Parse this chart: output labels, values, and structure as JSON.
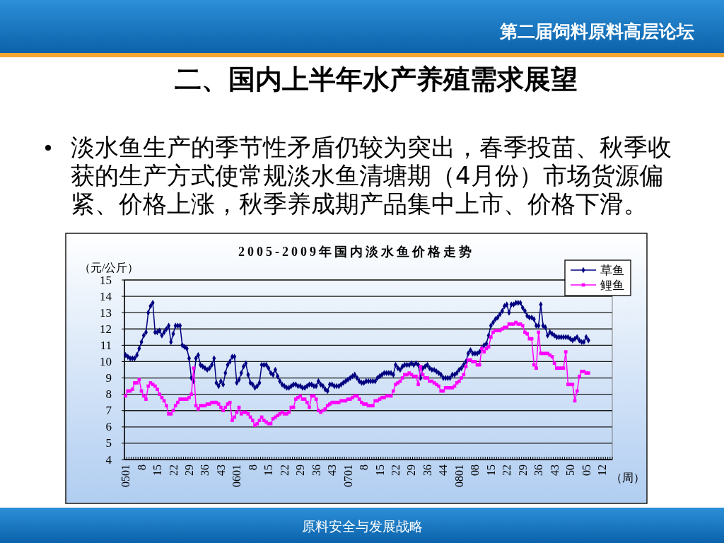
{
  "chart_data": {
    "type": "line",
    "title": "2005-2009年国内淡水鱼价格走势",
    "ylabel": "（元/公斤）",
    "xlabel": "（周）",
    "annotations": [
      "第二届饲料原料高层论坛",
      "二、国内上半年水产养殖需求展望",
      "淡水鱼生产的季节性矛盾仍较为突出，春季投苗、秋季收获的生产方式使常规淡水鱼清塘期（4月份）市场货源偏紧、价格上涨，秋季养成期产品集中上市、价格下滑。",
      "原料安全与发展战略"
    ],
    "categories": [
      "0501",
      null,
      null,
      null,
      null,
      null,
      null,
      "8",
      null,
      null,
      null,
      null,
      null,
      null,
      "15",
      null,
      null,
      null,
      null,
      null,
      null,
      "22",
      null,
      null,
      null,
      null,
      null,
      null,
      "29",
      null,
      null,
      null,
      null,
      null,
      null,
      "36",
      null,
      null,
      null,
      null,
      null,
      null,
      "43",
      null,
      null,
      null,
      null,
      null,
      null,
      "0601",
      null,
      null,
      null,
      null,
      null,
      null,
      "8",
      null,
      null,
      null,
      null,
      null,
      null,
      "15",
      null,
      null,
      null,
      null,
      null,
      null,
      "22",
      null,
      null,
      null,
      null,
      null,
      null,
      "29",
      null,
      null,
      null,
      null,
      null,
      null,
      "36",
      null,
      null,
      null,
      null,
      null,
      null,
      "43",
      null,
      null,
      null,
      null,
      null,
      null,
      "0701",
      null,
      null,
      null,
      null,
      null,
      null,
      "8",
      null,
      null,
      null,
      null,
      null,
      null,
      "15",
      null,
      null,
      null,
      null,
      null,
      null,
      "22",
      null,
      null,
      null,
      null,
      null,
      null,
      "29",
      null,
      null,
      null,
      null,
      null,
      null,
      "36",
      null,
      null,
      null,
      null,
      null,
      null,
      "44",
      null,
      null,
      null,
      null,
      null,
      null,
      "0801",
      null,
      null,
      null,
      null,
      null,
      null,
      "08",
      null,
      null,
      null,
      null,
      null,
      null,
      "15",
      null,
      null,
      null,
      null,
      null,
      null,
      "22",
      null,
      null,
      null,
      null,
      null,
      null,
      "29",
      null,
      null,
      null,
      null,
      null,
      null,
      "36",
      null,
      null,
      null,
      null,
      null,
      null,
      "43",
      null,
      null,
      null,
      null,
      null,
      null,
      "50",
      null,
      null,
      null,
      null,
      null,
      null,
      "05",
      null,
      null,
      null,
      null,
      null,
      null,
      "12",
      null,
      null,
      null,
      null
    ],
    "series": [
      {
        "name": "草鱼",
        "color": "#000080",
        "marker": "diamond",
        "values": [
          10.4,
          10.3,
          10.2,
          10.2,
          10.2,
          10.4,
          10.8,
          11.2,
          11.6,
          11.8,
          13.0,
          13.4,
          13.6,
          11.8,
          11.8,
          11.9,
          11.6,
          11.8,
          12.0,
          12.2,
          11.2,
          11.7,
          12.2,
          12.2,
          12.2,
          11.0,
          10.9,
          10.8,
          10.2,
          9.0,
          8.8,
          10.2,
          10.4,
          9.8,
          9.7,
          9.6,
          9.5,
          9.6,
          9.8,
          10.2,
          8.7,
          8.5,
          8.8,
          8.6,
          9.3,
          9.8,
          10.0,
          10.3,
          10.3,
          8.7,
          8.9,
          9.3,
          9.7,
          9.9,
          9.2,
          8.7,
          8.6,
          8.4,
          8.5,
          8.7,
          9.8,
          9.8,
          9.8,
          9.6,
          9.3,
          9.2,
          9.5,
          9.1,
          8.8,
          8.6,
          8.5,
          8.4,
          8.4,
          8.5,
          8.6,
          8.6,
          8.5,
          8.5,
          8.4,
          8.4,
          8.5,
          8.6,
          8.6,
          8.5,
          8.5,
          8.8,
          8.6,
          8.5,
          8.3,
          8.2,
          8.6,
          8.6,
          8.5,
          8.5,
          8.5,
          8.6,
          8.7,
          8.8,
          8.9,
          9.0,
          9.1,
          9.2,
          9.0,
          8.8,
          8.7,
          8.7,
          8.8,
          8.8,
          8.8,
          8.8,
          8.8,
          9.0,
          9.1,
          9.2,
          9.3,
          9.3,
          9.3,
          9.3,
          9.2,
          9.8,
          9.6,
          9.5,
          9.7,
          9.8,
          9.8,
          9.8,
          9.9,
          9.8,
          9.9,
          9.8,
          9.0,
          9.6,
          9.7,
          9.8,
          9.6,
          9.5,
          9.5,
          9.4,
          9.3,
          9.2,
          9.0,
          9.0,
          9.0,
          9.0,
          9.2,
          9.2,
          9.3,
          9.5,
          9.6,
          9.8,
          10.0,
          10.5,
          10.7,
          10.5,
          10.5,
          10.5,
          10.6,
          10.8,
          11.0,
          11.1,
          11.6,
          12.2,
          12.4,
          12.6,
          12.7,
          12.9,
          13.1,
          13.4,
          13.5,
          13.0,
          13.5,
          13.5,
          13.6,
          13.6,
          13.6,
          13.3,
          13.1,
          12.8,
          12.7,
          12.7,
          12.6,
          12.2,
          12.2,
          13.5,
          12.2,
          12.1,
          11.6,
          11.8,
          11.7,
          11.6,
          11.5,
          11.5,
          11.5,
          11.5,
          11.5,
          11.5,
          11.4,
          11.3,
          11.4,
          11.5,
          11.3,
          11.2,
          11.2,
          11.5,
          11.3,
          null,
          null,
          null,
          null,
          null,
          null,
          null,
          null,
          null,
          null
        ]
      },
      {
        "name": "鲤鱼",
        "color": "#ff00ff",
        "marker": "square",
        "values": [
          7.9,
          8.2,
          8.2,
          8.3,
          8.7,
          8.7,
          8.9,
          8.2,
          7.9,
          7.7,
          8.5,
          8.7,
          8.6,
          8.5,
          8.3,
          8.0,
          7.8,
          7.6,
          7.3,
          6.8,
          6.8,
          7.0,
          7.3,
          7.5,
          7.7,
          7.7,
          7.7,
          7.7,
          7.8,
          8.0,
          9.6,
          7.3,
          7.1,
          7.3,
          7.3,
          7.3,
          7.4,
          7.4,
          7.5,
          7.5,
          7.5,
          7.4,
          7.2,
          7.0,
          7.2,
          7.4,
          7.5,
          6.4,
          6.6,
          6.9,
          7.2,
          6.8,
          6.9,
          6.9,
          6.8,
          6.6,
          6.4,
          6.1,
          6.2,
          6.4,
          6.6,
          6.4,
          6.3,
          6.2,
          6.2,
          6.5,
          6.6,
          6.7,
          6.8,
          6.9,
          6.8,
          6.8,
          6.9,
          7.2,
          7.2,
          7.7,
          7.8,
          7.9,
          7.7,
          7.7,
          7.5,
          7.2,
          7.9,
          7.9,
          7.7,
          7.0,
          6.9,
          7.0,
          7.1,
          7.3,
          7.4,
          7.5,
          7.5,
          7.5,
          7.5,
          7.6,
          7.6,
          7.6,
          7.7,
          7.7,
          7.8,
          7.9,
          7.9,
          7.7,
          7.5,
          7.4,
          7.4,
          7.3,
          7.3,
          7.3,
          7.6,
          7.6,
          7.7,
          7.8,
          7.8,
          7.9,
          7.9,
          7.9,
          8.2,
          8.6,
          8.7,
          8.8,
          9.0,
          9.2,
          9.2,
          9.3,
          9.2,
          9.1,
          9.1,
          8.6,
          9.7,
          9.2,
          9.0,
          9.0,
          8.8,
          8.8,
          8.7,
          8.6,
          8.5,
          8.2,
          8.2,
          8.4,
          8.4,
          8.4,
          8.4,
          8.5,
          8.7,
          8.8,
          9.0,
          9.2,
          9.7,
          10.1,
          10.1,
          10.0,
          10.0,
          9.8,
          9.8,
          10.8,
          10.6,
          10.8,
          10.9,
          11.5,
          11.8,
          11.9,
          11.9,
          11.9,
          12.0,
          12.1,
          12.1,
          12.3,
          12.3,
          12.3,
          12.4,
          12.3,
          12.3,
          12.2,
          11.8,
          11.7,
          11.4,
          11.4,
          9.8,
          9.6,
          11.8,
          10.5,
          10.5,
          10.5,
          10.5,
          10.4,
          10.3,
          9.9,
          9.6,
          9.6,
          9.6,
          9.6,
          10.6,
          8.6,
          8.6,
          8.6,
          7.6,
          8.2,
          9.1,
          9.4,
          9.4,
          9.3,
          9.3,
          null,
          null,
          null,
          null,
          null,
          null,
          null,
          null,
          null,
          null
        ]
      }
    ],
    "ylim": [
      4,
      15
    ],
    "yticks": [
      4,
      5,
      6,
      7,
      8,
      9,
      10,
      11,
      12,
      13,
      14,
      15
    ],
    "grid": "y",
    "legend": "top right"
  }
}
